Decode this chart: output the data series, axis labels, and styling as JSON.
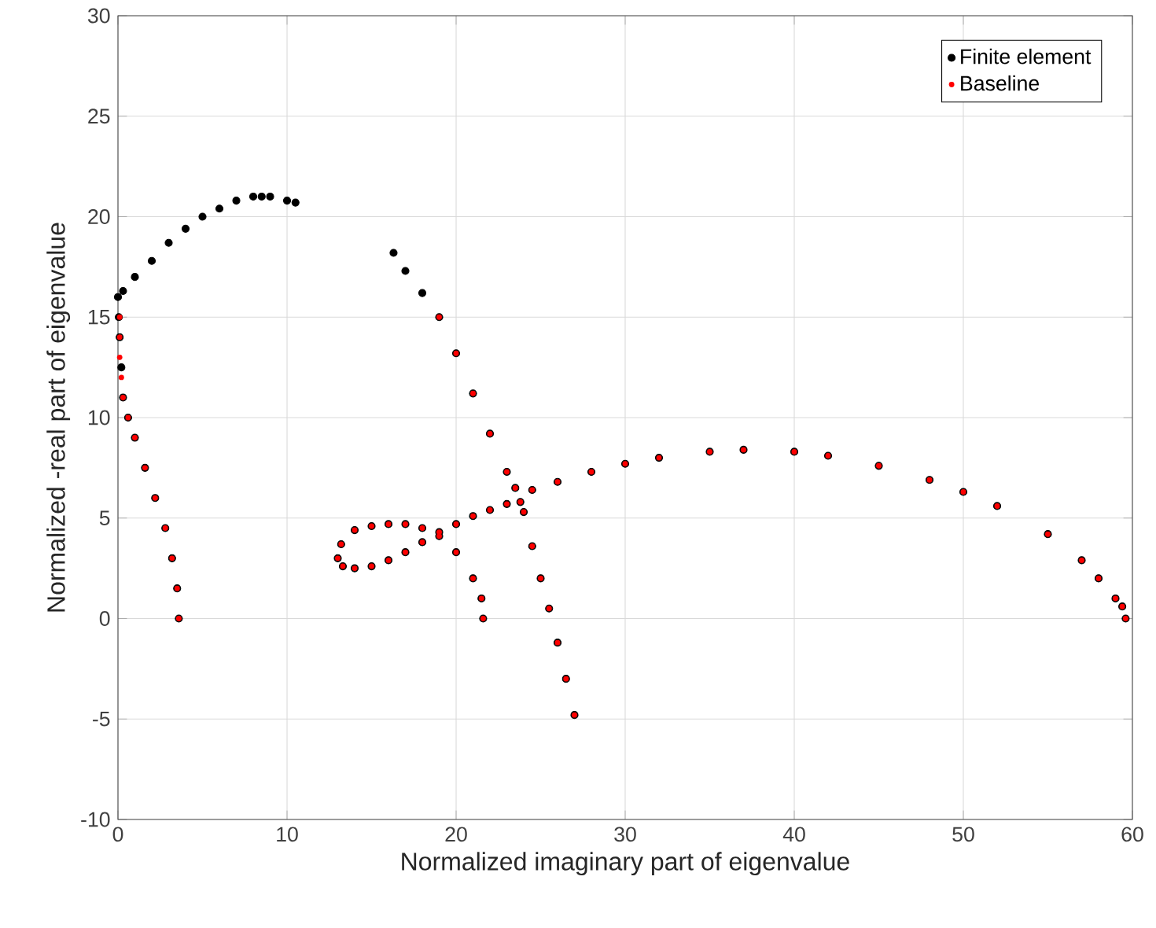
{
  "chart_data": {
    "type": "scatter",
    "xlabel": "Normalized imaginary part of eigenvalue",
    "ylabel": "Normalized -real part of eigenvalue",
    "xlim": [
      0,
      60
    ],
    "ylim": [
      -10,
      30
    ],
    "xticks": [
      0,
      10,
      20,
      30,
      40,
      50,
      60
    ],
    "yticks": [
      -10,
      -5,
      0,
      5,
      10,
      15,
      20,
      25,
      30
    ],
    "grid": true,
    "legend": "top right",
    "marker": "circle",
    "series": [
      {
        "name": "Finite element",
        "color": "#000000",
        "x": [
          3.6,
          3.5,
          3.2,
          2.8,
          2.2,
          1.6,
          1.0,
          0.6,
          0.3,
          0.2,
          0.1,
          0.05,
          0.0,
          0.3,
          1.0,
          2.0,
          3.0,
          4.0,
          5.0,
          6.0,
          7.0,
          8.0,
          8.5,
          9.0,
          10.0,
          10.5,
          16.3,
          17.0,
          18.0,
          19.0,
          20.0,
          21.0,
          22.0,
          23.0,
          23.5,
          23.8,
          24.0,
          24.5,
          25.0,
          25.5,
          26.0,
          26.5,
          27.0,
          21.6,
          21.5,
          21.0,
          20.0,
          19.0,
          18.0,
          17.0,
          16.0,
          15.0,
          14.0,
          13.2,
          13.0,
          13.3,
          14.0,
          15.0,
          16.0,
          17.0,
          18.0,
          19.0,
          20.0,
          21.0,
          22.0,
          23.0,
          24.5,
          26.0,
          28.0,
          30.0,
          32.0,
          35.0,
          37.0,
          40.0,
          42.0,
          45.0,
          48.0,
          50.0,
          52.0,
          55.0,
          57.0,
          58.0,
          59.0,
          59.4,
          59.6
        ],
        "values": [
          0.0,
          1.5,
          3.0,
          4.5,
          6.0,
          7.5,
          9.0,
          10.0,
          11.0,
          12.5,
          14.0,
          15.0,
          16.0,
          16.3,
          17.0,
          17.8,
          18.7,
          19.4,
          20.0,
          20.4,
          20.8,
          21.0,
          21.0,
          21.0,
          20.8,
          20.7,
          18.2,
          17.3,
          16.2,
          15.0,
          13.2,
          11.2,
          9.2,
          7.3,
          6.5,
          5.8,
          5.3,
          3.6,
          2.0,
          0.5,
          -1.2,
          -3.0,
          -4.8,
          0.0,
          1.0,
          2.0,
          3.3,
          4.1,
          4.5,
          4.7,
          4.7,
          4.6,
          4.4,
          3.7,
          3.0,
          2.6,
          2.5,
          2.6,
          2.9,
          3.3,
          3.8,
          4.3,
          4.7,
          5.1,
          5.4,
          5.7,
          6.4,
          6.8,
          7.3,
          7.7,
          8.0,
          8.3,
          8.4,
          8.3,
          8.1,
          7.6,
          6.9,
          6.3,
          5.6,
          4.2,
          2.9,
          2.0,
          1.0,
          0.6,
          0.0
        ]
      },
      {
        "name": "Baseline",
        "color": "#ff0000",
        "x": [
          3.6,
          3.5,
          3.2,
          2.8,
          2.2,
          1.6,
          1.0,
          0.6,
          0.3,
          0.2,
          0.1,
          0.1,
          0.1,
          19.0,
          20.0,
          21.0,
          22.0,
          23.0,
          23.5,
          23.8,
          24.0,
          24.5,
          25.0,
          25.5,
          26.0,
          26.5,
          27.0,
          21.6,
          21.5,
          21.0,
          20.0,
          19.0,
          18.0,
          17.0,
          16.0,
          15.0,
          14.0,
          13.2,
          13.0,
          13.3,
          14.0,
          15.0,
          16.0,
          17.0,
          18.0,
          19.0,
          20.0,
          21.0,
          22.0,
          23.0,
          24.5,
          26.0,
          28.0,
          30.0,
          32.0,
          35.0,
          37.0,
          40.0,
          42.0,
          45.0,
          48.0,
          50.0,
          52.0,
          55.0,
          57.0,
          58.0,
          59.0,
          59.4,
          59.6
        ],
        "values": [
          0.0,
          1.5,
          3.0,
          4.5,
          6.0,
          7.5,
          9.0,
          10.0,
          11.0,
          12.0,
          13.0,
          14.0,
          15.0,
          15.0,
          13.2,
          11.2,
          9.2,
          7.3,
          6.5,
          5.8,
          5.3,
          3.6,
          2.0,
          0.5,
          -1.2,
          -3.0,
          -4.8,
          0.0,
          1.0,
          2.0,
          3.3,
          4.1,
          4.5,
          4.7,
          4.7,
          4.6,
          4.4,
          3.7,
          3.0,
          2.6,
          2.5,
          2.6,
          2.9,
          3.3,
          3.8,
          4.3,
          4.7,
          5.1,
          5.4,
          5.7,
          6.4,
          6.8,
          7.3,
          7.7,
          8.0,
          8.3,
          8.4,
          8.3,
          8.1,
          7.6,
          6.9,
          6.3,
          5.6,
          4.2,
          2.9,
          2.0,
          1.0,
          0.6,
          0.0
        ]
      }
    ]
  }
}
